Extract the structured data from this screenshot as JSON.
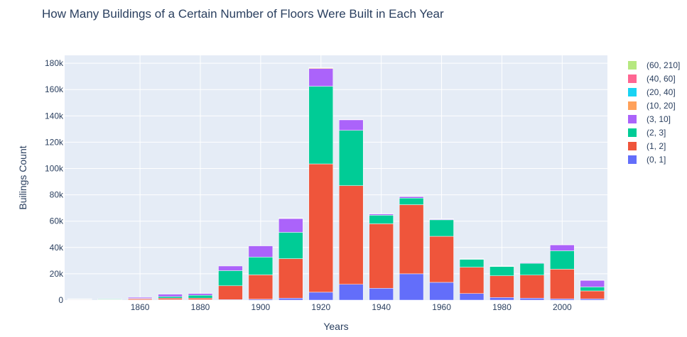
{
  "chart_data": {
    "type": "bar",
    "barmode": "stack",
    "title": "How Many Buildings of a Certain Number of Floors Were Built in Each Year",
    "xlabel": "Years",
    "ylabel": "Builings Count",
    "categories": [
      1840,
      1850,
      1860,
      1870,
      1880,
      1890,
      1900,
      1910,
      1920,
      1930,
      1940,
      1950,
      1960,
      1970,
      1980,
      1990,
      2000,
      2010
    ],
    "x_ticks": [
      1860,
      1880,
      1900,
      1920,
      1940,
      1960,
      1980,
      2000
    ],
    "y_ticks": [
      0,
      20000,
      40000,
      60000,
      80000,
      100000,
      120000,
      140000,
      160000,
      180000
    ],
    "y_tick_labels": [
      "0",
      "20k",
      "40k",
      "60k",
      "80k",
      "100k",
      "120k",
      "140k",
      "160k",
      "180k"
    ],
    "ylim": [
      0,
      186000
    ],
    "xlim": [
      1835,
      2015
    ],
    "grid": true,
    "legend_position": "right",
    "series": [
      {
        "name": "(0, 1]",
        "color": "#636efa",
        "values": [
          300,
          200,
          200,
          300,
          300,
          400,
          700,
          1500,
          6000,
          12000,
          9000,
          20000,
          13500,
          5000,
          2000,
          1500,
          1000,
          1000
        ]
      },
      {
        "name": "(1, 2]",
        "color": "#ef553b",
        "values": [
          300,
          300,
          800,
          1200,
          1200,
          10500,
          18500,
          30000,
          97500,
          75000,
          49000,
          52500,
          35000,
          20000,
          16500,
          17500,
          22500,
          6000
        ]
      },
      {
        "name": "(2, 3]",
        "color": "#00cc96",
        "values": [
          300,
          400,
          300,
          1200,
          2200,
          11500,
          13500,
          20000,
          59000,
          42000,
          6500,
          5000,
          12500,
          6000,
          7000,
          9000,
          14000,
          3000
        ]
      },
      {
        "name": "(3, 10]",
        "color": "#ab63fa",
        "values": [
          200,
          200,
          800,
          1800,
          1300,
          3500,
          8500,
          10500,
          13500,
          8000,
          1000,
          1200,
          500,
          300,
          300,
          500,
          4500,
          5000
        ]
      },
      {
        "name": "(10, 20]",
        "color": "#ffa15a",
        "values": [
          0,
          0,
          0,
          0,
          0,
          0,
          0,
          300,
          500,
          100,
          100,
          100,
          100,
          50,
          50,
          50,
          100,
          100
        ]
      },
      {
        "name": "(20, 40]",
        "color": "#19d3f3",
        "values": [
          0,
          0,
          0,
          0,
          0,
          0,
          0,
          100,
          200,
          100,
          50,
          50,
          50,
          20,
          20,
          20,
          50,
          50
        ]
      },
      {
        "name": "(40, 60]",
        "color": "#ff6692",
        "values": [
          0,
          0,
          0,
          0,
          0,
          0,
          0,
          50,
          100,
          50,
          20,
          20,
          20,
          10,
          10,
          10,
          20,
          20
        ]
      },
      {
        "name": "(60, 210]",
        "color": "#b6e880",
        "values": [
          0,
          0,
          0,
          0,
          0,
          0,
          0,
          20,
          50,
          20,
          10,
          10,
          10,
          5,
          5,
          5,
          10,
          10
        ]
      }
    ]
  }
}
